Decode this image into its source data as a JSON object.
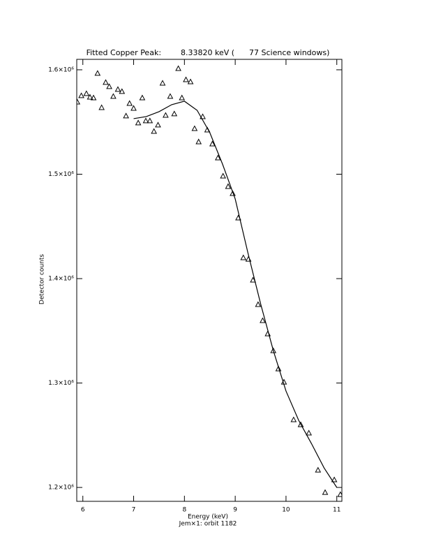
{
  "chart_data": {
    "type": "scatter",
    "title": "Fitted Copper Peak:        8.33820 keV (      77 Science windows)",
    "x_label": "Energy (keV)",
    "subtitle": "Jem×1: orbit 1182",
    "y_label": "Detector counts",
    "xlim": [
      5.88,
      11.1
    ],
    "ylim": [
      1186700,
      1610000
    ],
    "xticks": [
      6,
      7,
      8,
      9,
      10,
      11
    ],
    "yticks": [
      {
        "value": 1200000,
        "label": "1.2×10⁶"
      },
      {
        "value": 1300000,
        "label": "1.3×10⁶"
      },
      {
        "value": 1400000,
        "label": "1.4×10⁶"
      },
      {
        "value": 1500000,
        "label": "1.5×10⁶"
      },
      {
        "value": 1600000,
        "label": "1.6×10⁶"
      }
    ],
    "series": [
      {
        "mode": "markers",
        "color": "#000000",
        "x": [
          5.89,
          5.97,
          6.07,
          6.14,
          6.21,
          6.29,
          6.37,
          6.45,
          6.52,
          6.6,
          6.69,
          6.77,
          6.85,
          6.92,
          7.0,
          7.09,
          7.17,
          7.24,
          7.32,
          7.4,
          7.48,
          7.57,
          7.63,
          7.72,
          7.8,
          7.88,
          7.95,
          8.03,
          8.12,
          8.2,
          8.28,
          8.36,
          8.45,
          8.55,
          8.66,
          8.76,
          8.86,
          8.95,
          9.06,
          9.16,
          9.26,
          9.35,
          9.45,
          9.54,
          9.64,
          9.75,
          9.85,
          9.96,
          10.15,
          10.29,
          10.45,
          10.63,
          10.77,
          10.95,
          11.07
        ],
        "values": [
          1569200,
          1575300,
          1577300,
          1573900,
          1573200,
          1596700,
          1563900,
          1588000,
          1584000,
          1574600,
          1581300,
          1579300,
          1555900,
          1567900,
          1563200,
          1549200,
          1573200,
          1551200,
          1551200,
          1541100,
          1547200,
          1587300,
          1556500,
          1574600,
          1557900,
          1601300,
          1573200,
          1590600,
          1588600,
          1543800,
          1531100,
          1555200,
          1542500,
          1529100,
          1515700,
          1498300,
          1488300,
          1481600,
          1458200,
          1420100,
          1418700,
          1398700,
          1375300,
          1359900,
          1347200,
          1331100,
          1313700,
          1301000,
          1264900,
          1260200,
          1252200,
          1216700,
          1195300,
          1207400,
          1193300
        ]
      },
      {
        "mode": "line",
        "color": "#000000",
        "x": [
          7.0,
          7.25,
          7.5,
          7.75,
          8.0,
          8.25,
          8.5,
          8.75,
          9.0,
          9.25,
          9.5,
          9.75,
          10.0,
          10.25,
          10.5,
          10.75,
          11.0
        ],
        "values": [
          1553200,
          1555200,
          1559900,
          1566600,
          1569900,
          1561200,
          1539800,
          1509700,
          1476300,
          1424700,
          1375900,
          1331100,
          1292300,
          1264200,
          1242100,
          1218700,
          1200000
        ]
      }
    ]
  }
}
